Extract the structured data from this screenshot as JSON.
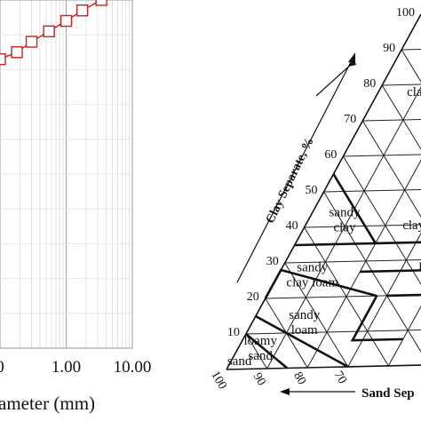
{
  "chart_data": [
    {
      "type": "line",
      "scale": "log-x",
      "xlabel": "ameter (mm)",
      "x_tick_labels": [
        "0",
        "1.00",
        "10.00"
      ],
      "xlim": [
        0.1,
        10.0
      ],
      "ylim": [
        0,
        100
      ],
      "grid": true,
      "series": [
        {
          "marker": "square",
          "color": "#cc1f1f",
          "x": [
            0.1,
            0.18,
            0.3,
            0.55,
            1.0,
            1.75,
            3.4
          ],
          "y": [
            83,
            85,
            88,
            91,
            94,
            97,
            100
          ]
        }
      ]
    },
    {
      "type": "ternary",
      "axis_labels": {
        "clay": "Clay Separate, %",
        "sand": "Sand Sep"
      },
      "clay_ticks": [
        "10",
        "20",
        "30",
        "40",
        "50",
        "60",
        "70",
        "80",
        "90",
        "100"
      ],
      "sand_ticks": [
        "100",
        "90",
        "80",
        "70"
      ],
      "regions": [
        {
          "id": "clay",
          "label": "cla"
        },
        {
          "id": "sandy-clay",
          "label": "sandy\nclay"
        },
        {
          "id": "clay-2",
          "label": "clay"
        },
        {
          "id": "sandy-clay-loam",
          "label": "sandy\nclay loam"
        },
        {
          "id": "clay-loam",
          "label": "loa"
        },
        {
          "id": "sandy-loam",
          "label": "sandy\nloam"
        },
        {
          "id": "loamy-sand",
          "label": "loamy\nsand"
        },
        {
          "id": "sand",
          "label": "sand"
        }
      ]
    }
  ]
}
